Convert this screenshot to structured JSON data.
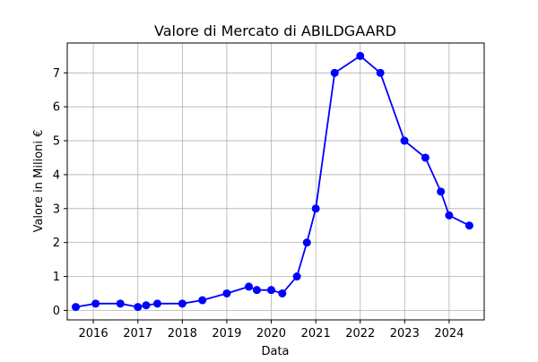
{
  "chart_data": {
    "type": "line",
    "title": "Valore di Mercato di ABILDGAARD",
    "xlabel": "Data",
    "ylabel": "Valore in Milioni €",
    "x_axis": {
      "kind": "date",
      "range": [
        "2015-06-01",
        "2024-10-15"
      ],
      "ticks": [
        "2016",
        "2017",
        "2018",
        "2019",
        "2020",
        "2021",
        "2022",
        "2023",
        "2024"
      ],
      "tick_dates": [
        "2016-01-01",
        "2017-01-01",
        "2018-01-01",
        "2019-01-01",
        "2020-01-01",
        "2021-01-01",
        "2022-01-01",
        "2023-01-01",
        "2024-01-01"
      ]
    },
    "y_axis": {
      "range": [
        -0.28,
        7.88
      ],
      "ticks": [
        0,
        1,
        2,
        3,
        4,
        5,
        6,
        7
      ]
    },
    "grid": true,
    "line_color": "#0000ff",
    "series": [
      {
        "x": [
          "2015-08-10",
          "2016-01-20",
          "2016-08-10",
          "2017-01-01",
          "2017-03-10",
          "2017-06-10",
          "2018-01-01",
          "2018-06-15",
          "2019-01-01",
          "2019-07-01",
          "2019-09-05",
          "2020-01-01",
          "2020-04-01",
          "2020-07-30",
          "2020-10-20",
          "2021-01-01",
          "2021-06-05",
          "2022-01-01",
          "2022-06-15",
          "2022-12-30",
          "2023-06-20",
          "2023-10-25",
          "2024-01-01",
          "2024-06-15"
        ],
        "y": [
          0.1,
          0.2,
          0.2,
          0.1,
          0.15,
          0.2,
          0.2,
          0.3,
          0.5,
          0.7,
          0.6,
          0.6,
          0.5,
          1.0,
          2.0,
          3.0,
          7.0,
          7.5,
          7.0,
          5.0,
          4.5,
          3.5,
          2.8,
          2.5
        ]
      }
    ]
  }
}
